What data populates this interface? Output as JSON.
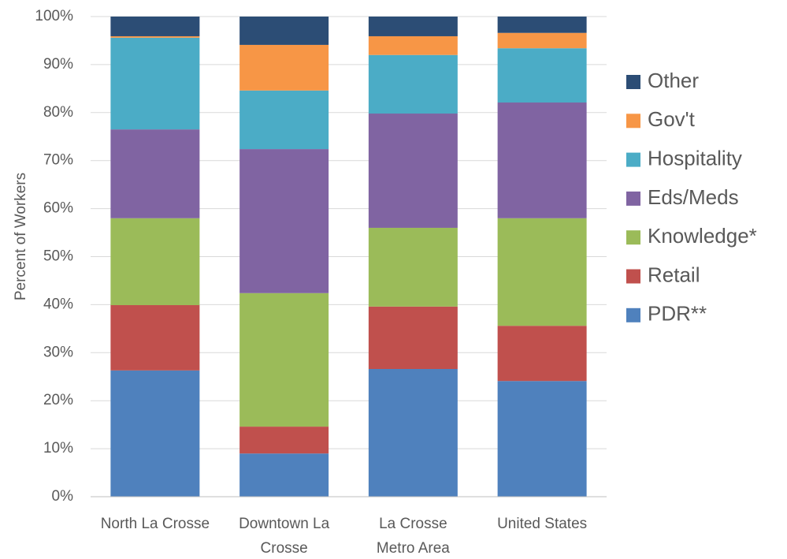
{
  "chart_data": {
    "type": "stacked_bar",
    "y_label": "Percent of Workers",
    "categories": [
      "North La Crosse",
      "Downtown La Crosse",
      "La Crosse Metro Area",
      "United States"
    ],
    "series": [
      {
        "name": "PDR**",
        "color": "#4f81bd",
        "values": [
          26.3,
          9.0,
          26.6,
          24.1
        ]
      },
      {
        "name": "Retail",
        "color": "#c0504d",
        "values": [
          13.6,
          5.6,
          13.0,
          11.5
        ]
      },
      {
        "name": "Knowledge*",
        "color": "#9bbb59",
        "values": [
          18.1,
          27.8,
          16.4,
          22.4
        ]
      },
      {
        "name": "Eds/Meds",
        "color": "#8064a2",
        "values": [
          18.5,
          30.0,
          23.8,
          24.1
        ]
      },
      {
        "name": "Hospitality",
        "color": "#4bacc6",
        "values": [
          19.1,
          12.2,
          12.2,
          11.3
        ]
      },
      {
        "name": "Gov't",
        "color": "#f79646",
        "values": [
          0.3,
          9.5,
          3.9,
          3.2
        ]
      },
      {
        "name": "Other",
        "color": "#2c4d75",
        "values": [
          4.1,
          5.9,
          4.1,
          3.4
        ]
      }
    ],
    "ylim": [
      0,
      100
    ],
    "yticks": [
      {
        "value": 0,
        "label": "0%"
      },
      {
        "value": 10,
        "label": "10%"
      },
      {
        "value": 20,
        "label": "20%"
      },
      {
        "value": 30,
        "label": "30%"
      },
      {
        "value": 40,
        "label": "40%"
      },
      {
        "value": 50,
        "label": "50%"
      },
      {
        "value": 60,
        "label": "60%"
      },
      {
        "value": 70,
        "label": "70%"
      },
      {
        "value": 80,
        "label": "80%"
      },
      {
        "value": 90,
        "label": "90%"
      },
      {
        "value": 100,
        "label": "100%"
      }
    ],
    "grid": true,
    "legend": "right"
  }
}
